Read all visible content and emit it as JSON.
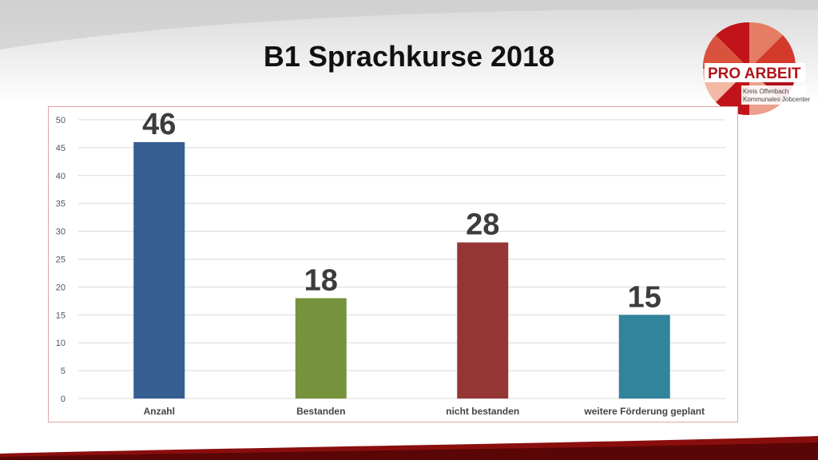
{
  "slide": {
    "title": "B1 Sprachkurse 2018"
  },
  "logo": {
    "name": "PRO ARBEIT",
    "subtitle_1": "Kreis Offenbach",
    "subtitle_2": "Kommunales Jobcenter"
  },
  "chart_data": {
    "type": "bar",
    "categories": [
      "Anzahl",
      "Bestanden",
      "nicht bestanden",
      "weitere Förderung geplant"
    ],
    "values": [
      46,
      18,
      28,
      15
    ],
    "colors": [
      "#355f91",
      "#76923c",
      "#943634",
      "#31849b"
    ],
    "ylim": [
      0,
      50
    ],
    "yticks": [
      0,
      5,
      10,
      15,
      20,
      25,
      30,
      35,
      40,
      45,
      50
    ],
    "grid": true,
    "data_labels": [
      "46",
      "18",
      "28",
      "15"
    ]
  }
}
